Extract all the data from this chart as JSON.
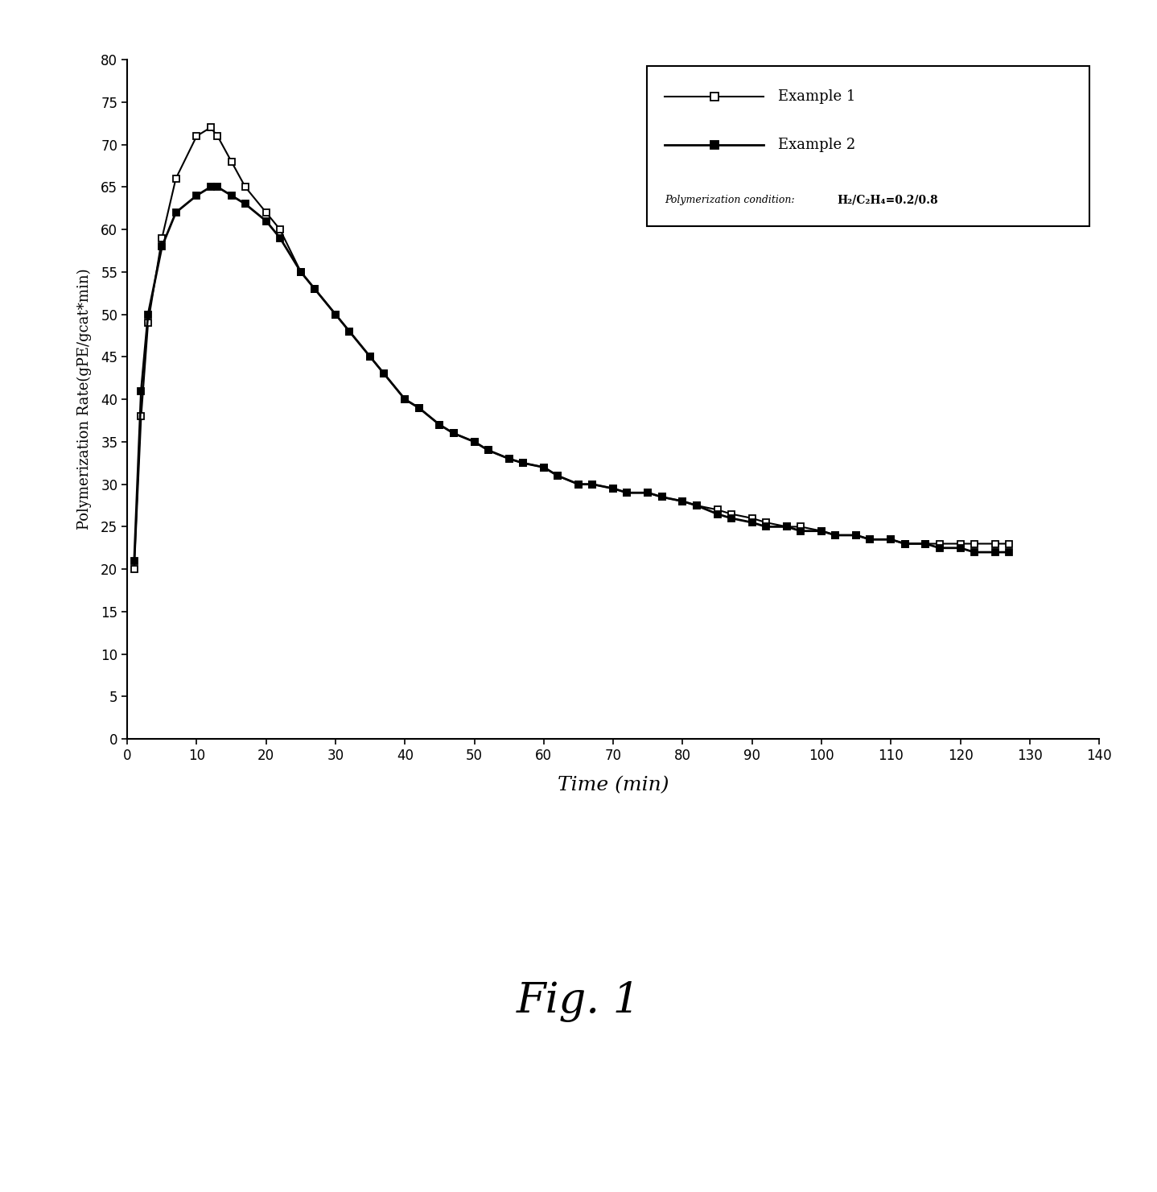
{
  "example1_x": [
    1,
    2,
    3,
    5,
    7,
    10,
    12,
    13,
    15,
    17,
    20,
    22,
    25,
    27,
    30,
    32,
    35,
    37,
    40,
    42,
    45,
    47,
    50,
    52,
    55,
    57,
    60,
    62,
    65,
    67,
    70,
    72,
    75,
    77,
    80,
    82,
    85,
    87,
    90,
    92,
    95,
    97,
    100,
    102,
    105,
    107,
    110,
    112,
    115,
    117,
    120,
    122,
    125,
    127
  ],
  "example1_y": [
    20,
    38,
    49,
    59,
    66,
    71,
    72,
    71,
    68,
    65,
    62,
    60,
    55,
    53,
    50,
    48,
    45,
    43,
    40,
    39,
    37,
    36,
    35,
    34,
    33,
    32.5,
    32,
    31,
    30,
    30,
    29.5,
    29,
    29,
    28.5,
    28,
    27.5,
    27,
    26.5,
    26,
    25.5,
    25,
    25,
    24.5,
    24,
    24,
    23.5,
    23.5,
    23,
    23,
    23,
    23,
    23,
    23,
    23
  ],
  "example2_x": [
    1,
    2,
    3,
    5,
    7,
    10,
    12,
    13,
    15,
    17,
    20,
    22,
    25,
    27,
    30,
    32,
    35,
    37,
    40,
    42,
    45,
    47,
    50,
    52,
    55,
    57,
    60,
    62,
    65,
    67,
    70,
    72,
    75,
    77,
    80,
    82,
    85,
    87,
    90,
    92,
    95,
    97,
    100,
    102,
    105,
    107,
    110,
    112,
    115,
    117,
    120,
    122,
    125,
    127
  ],
  "example2_y": [
    21,
    41,
    50,
    58,
    62,
    64,
    65,
    65,
    64,
    63,
    61,
    59,
    55,
    53,
    50,
    48,
    45,
    43,
    40,
    39,
    37,
    36,
    35,
    34,
    33,
    32.5,
    32,
    31,
    30,
    30,
    29.5,
    29,
    29,
    28.5,
    28,
    27.5,
    26.5,
    26,
    25.5,
    25,
    25,
    24.5,
    24.5,
    24,
    24,
    23.5,
    23.5,
    23,
    23,
    22.5,
    22.5,
    22,
    22,
    22
  ],
  "xlabel": "Time (min)",
  "ylabel": "Polymerization Rate(gPE/gcat*min)",
  "xlim": [
    0,
    140
  ],
  "ylim": [
    0,
    80
  ],
  "xticks": [
    0,
    10,
    20,
    30,
    40,
    50,
    60,
    70,
    80,
    90,
    100,
    110,
    120,
    130,
    140
  ],
  "yticks": [
    0,
    5,
    10,
    15,
    20,
    25,
    30,
    35,
    40,
    45,
    50,
    55,
    60,
    65,
    70,
    75,
    80
  ],
  "legend_label1": "Example 1",
  "legend_label2": "Example 2",
  "legend_condition_label": "Polymerization condition: ",
  "legend_condition_bold": "H₂/C₂H₄=0.2/0.8",
  "fig_label": "Fig. 1",
  "line_color": "#000000",
  "background_color": "#ffffff"
}
